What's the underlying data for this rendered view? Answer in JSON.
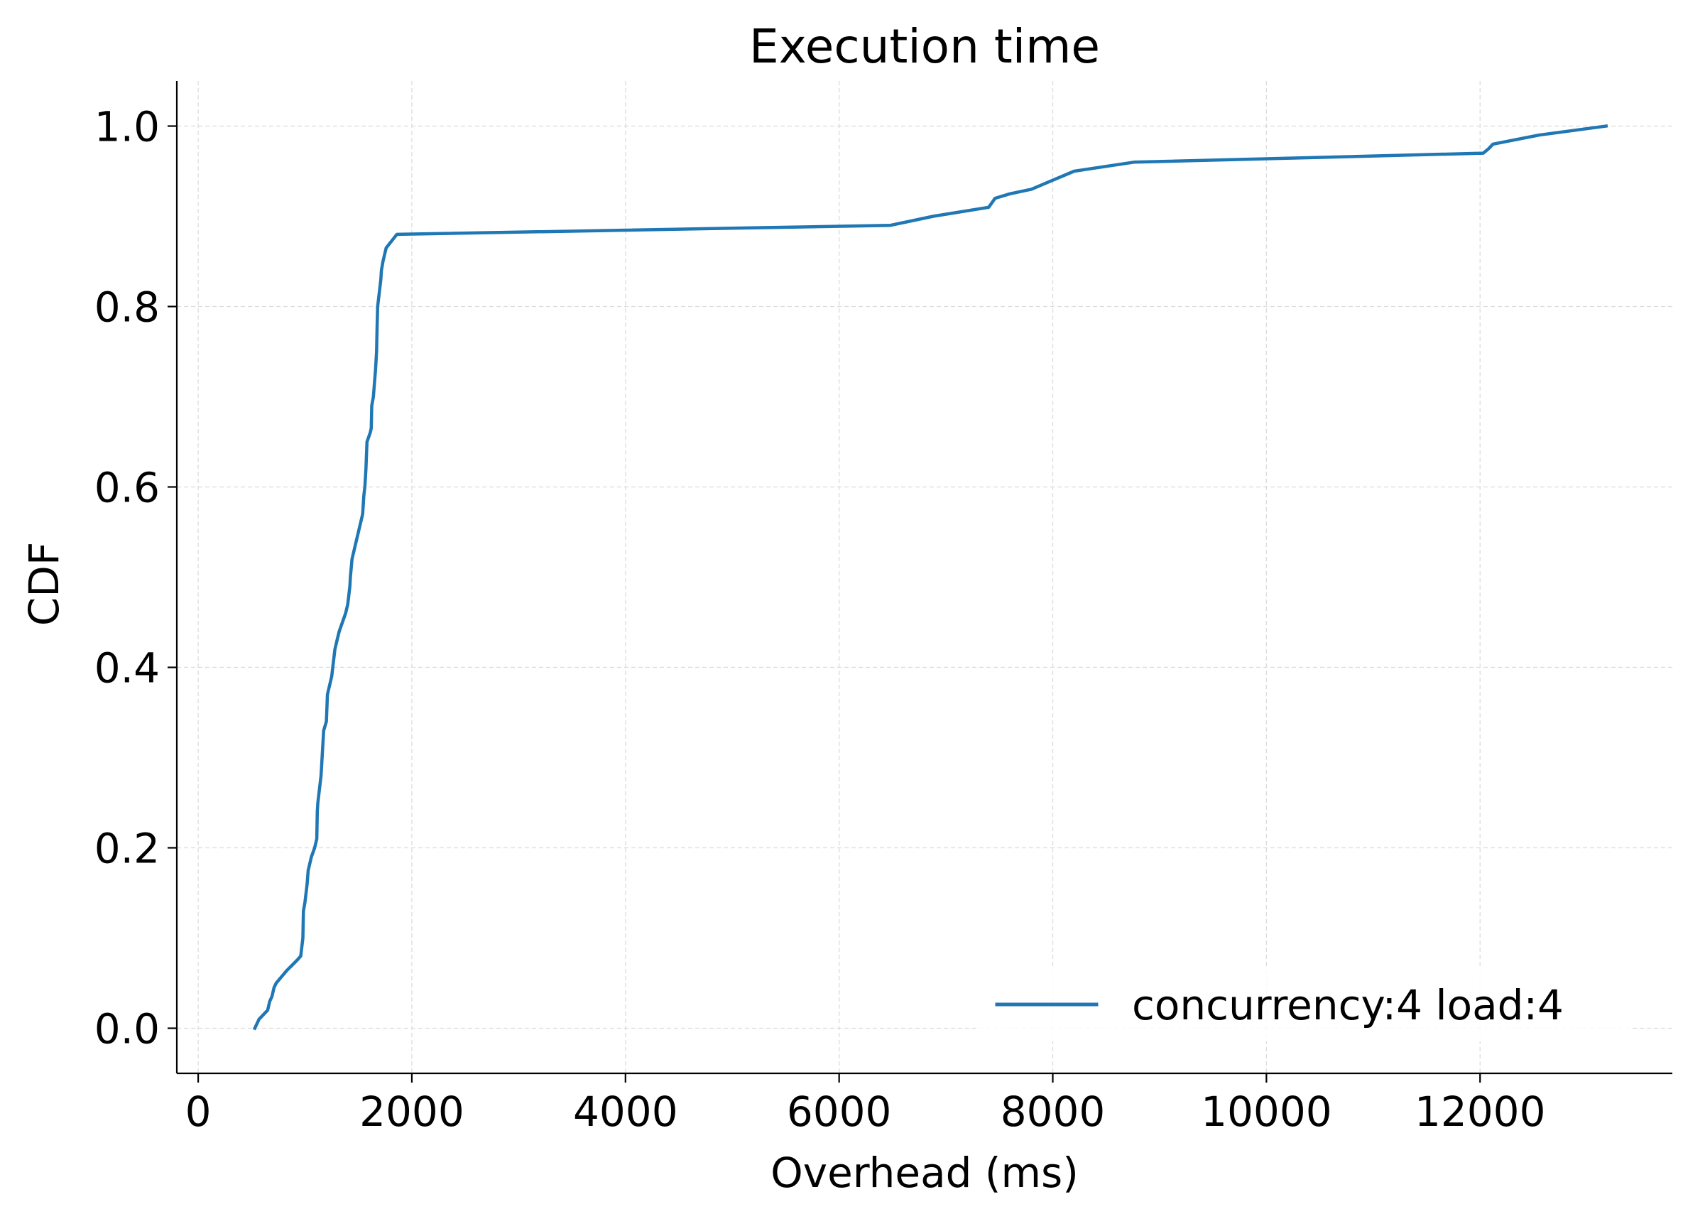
{
  "chart_data": {
    "type": "line",
    "title": "Execution time",
    "xlabel": "Overhead (ms)",
    "ylabel": "CDF",
    "xlim": [
      -200,
      13800
    ],
    "ylim": [
      -0.05,
      1.05
    ],
    "xticks": [
      0,
      2000,
      4000,
      6000,
      8000,
      10000,
      12000
    ],
    "yticks": [
      0.0,
      0.2,
      0.4,
      0.6,
      0.8,
      1.0
    ],
    "xtick_labels": [
      "0",
      "2000",
      "4000",
      "6000",
      "8000",
      "10000",
      "12000"
    ],
    "ytick_labels": [
      "0.0",
      "0.2",
      "0.4",
      "0.6",
      "0.8",
      "1.0"
    ],
    "grid": true,
    "legend": {
      "position": "lower-right"
    },
    "series": [
      {
        "name": "concurrency:4 load:4",
        "color": "#1f77b4",
        "x": [
          530,
          570,
          650,
          670,
          690,
          710,
          730,
          780,
          830,
          880,
          930,
          960,
          980,
          985,
          1000,
          1020,
          1030,
          1060,
          1090,
          1110,
          1115,
          1120,
          1140,
          1150,
          1165,
          1175,
          1200,
          1210,
          1230,
          1250,
          1260,
          1270,
          1280,
          1300,
          1320,
          1350,
          1380,
          1400,
          1420,
          1425,
          1440,
          1460,
          1470,
          1500,
          1540,
          1550,
          1560,
          1570,
          1580,
          1610,
          1620,
          1625,
          1640,
          1660,
          1670,
          1675,
          1680,
          1700,
          1710,
          1715,
          1730,
          1750,
          1760,
          1860,
          6480,
          6880,
          7400,
          7460,
          7600,
          7800,
          8000,
          8200,
          8760,
          12030,
          12080,
          12120,
          12550,
          13180
        ],
        "y": [
          0.0,
          0.01,
          0.02,
          0.03,
          0.035,
          0.045,
          0.05,
          0.057,
          0.064,
          0.07,
          0.076,
          0.08,
          0.1,
          0.13,
          0.14,
          0.16,
          0.175,
          0.19,
          0.2,
          0.21,
          0.24,
          0.25,
          0.27,
          0.28,
          0.31,
          0.33,
          0.34,
          0.37,
          0.38,
          0.39,
          0.4,
          0.41,
          0.42,
          0.43,
          0.44,
          0.45,
          0.46,
          0.47,
          0.49,
          0.5,
          0.52,
          0.53,
          0.535,
          0.55,
          0.57,
          0.59,
          0.6,
          0.62,
          0.65,
          0.66,
          0.665,
          0.69,
          0.7,
          0.73,
          0.75,
          0.78,
          0.8,
          0.82,
          0.83,
          0.84,
          0.85,
          0.86,
          0.865,
          0.88,
          0.89,
          0.9,
          0.91,
          0.92,
          0.925,
          0.93,
          0.94,
          0.95,
          0.96,
          0.97,
          0.975,
          0.98,
          0.99,
          1.0
        ]
      }
    ]
  }
}
